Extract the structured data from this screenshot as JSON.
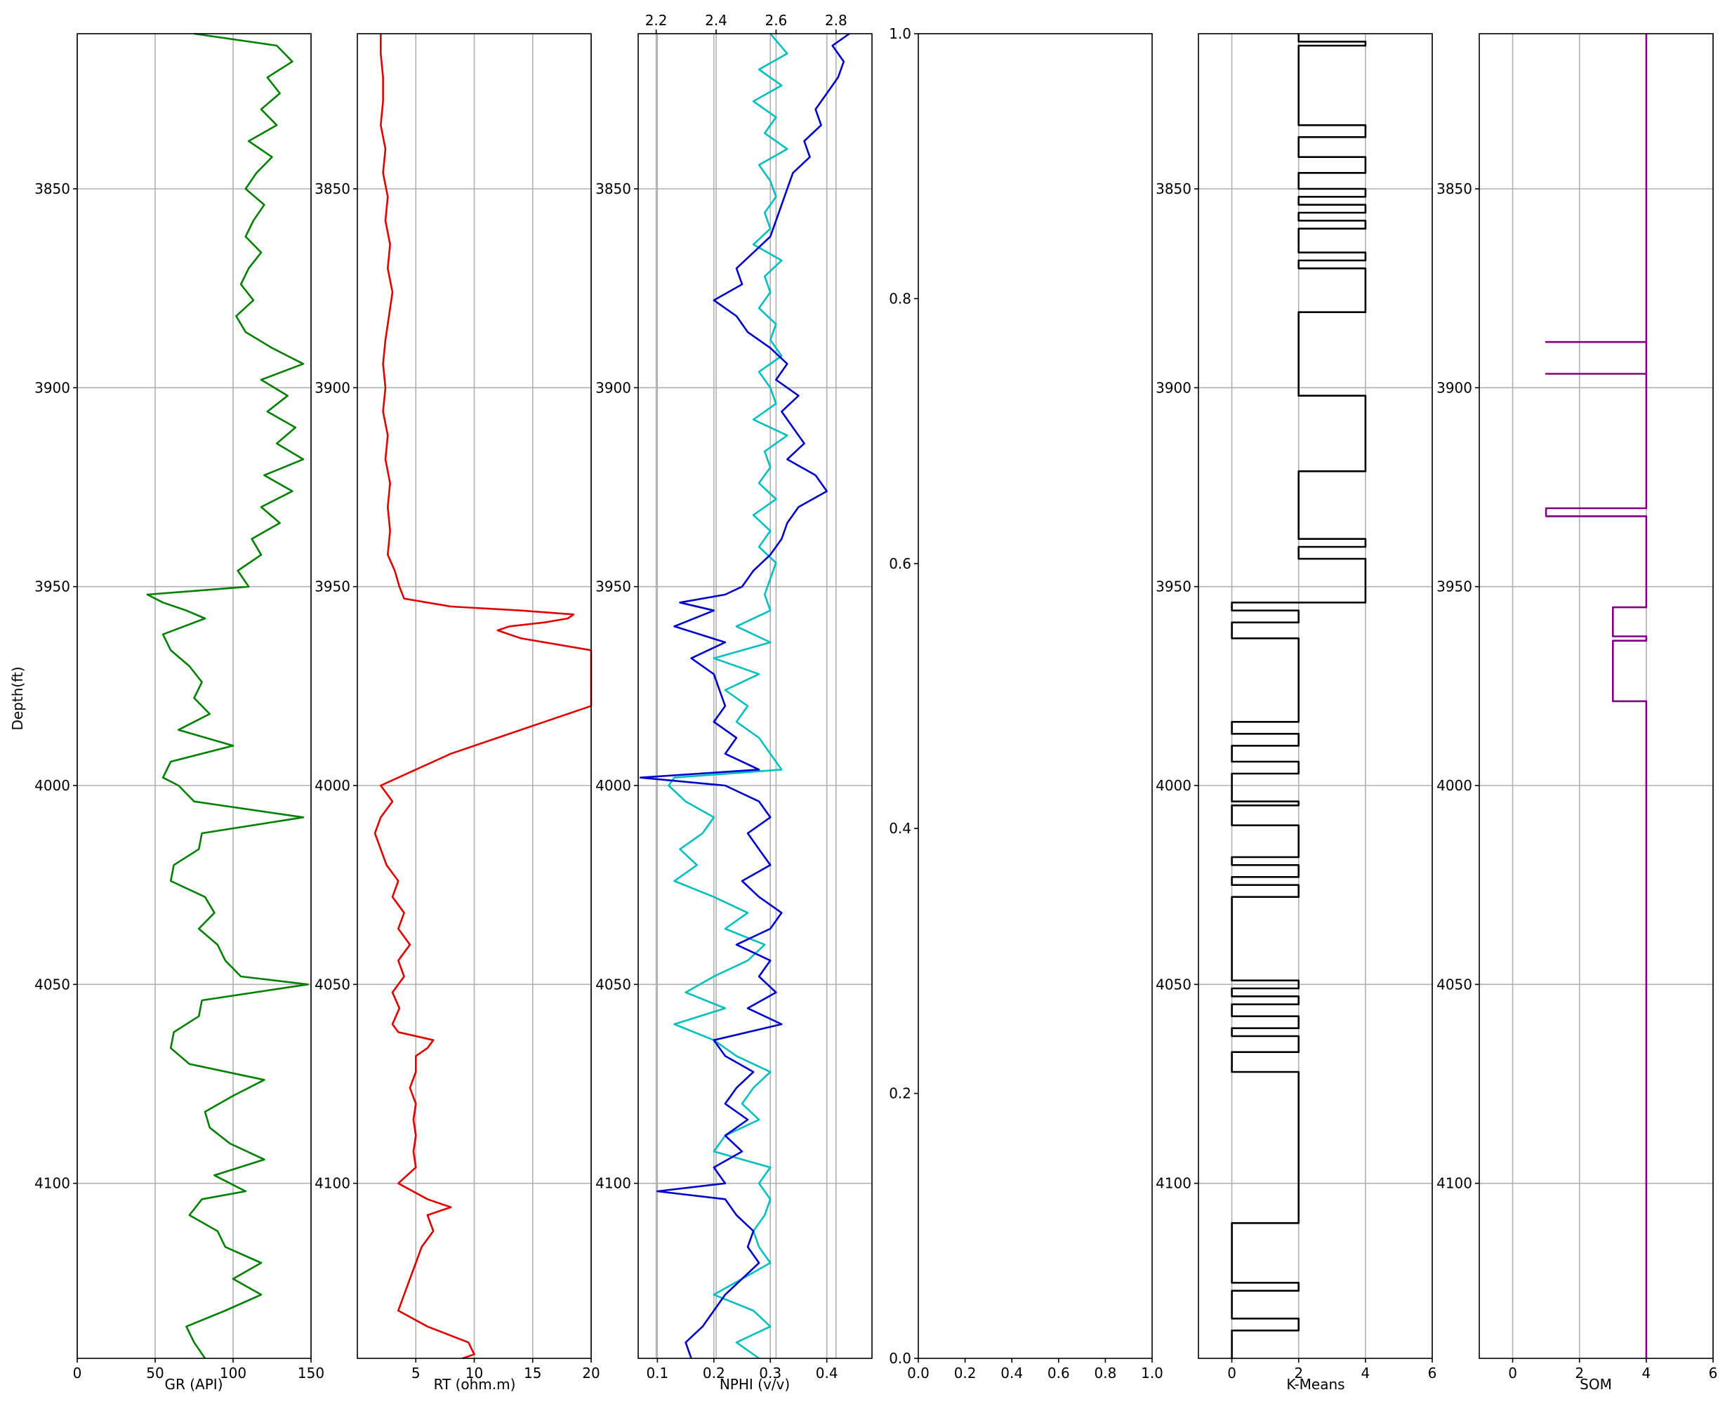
{
  "chart_data": [
    {
      "type": "line",
      "y_name": "depth",
      "ylabel": "Depth(ft)",
      "ylim": [
        3811,
        4144
      ],
      "y_ticks": [
        3850,
        3900,
        3950,
        4000,
        4050,
        4100
      ],
      "xlabel": "GR (API)",
      "xlim": [
        0,
        150
      ],
      "x_ticks": [
        0,
        50,
        100,
        150
      ],
      "grid": true,
      "color": "#008000",
      "series": [
        {
          "depth": [
            3811,
            3814,
            3818,
            3822,
            3826,
            3830,
            3834,
            3838,
            3842,
            3846,
            3850,
            3854,
            3858,
            3862,
            3866,
            3870,
            3874,
            3878,
            3882,
            3886,
            3890,
            3894,
            3898,
            3902,
            3906,
            3910,
            3914,
            3918,
            3922,
            3926,
            3930,
            3934,
            3938,
            3942,
            3946,
            3950,
            3952,
            3954,
            3956,
            3958,
            3962,
            3966,
            3970,
            3974,
            3978,
            3982,
            3986,
            3990,
            3994,
            3998,
            4000,
            4004,
            4008,
            4012,
            4016,
            4020,
            4024,
            4028,
            4032,
            4036,
            4040,
            4044,
            4048,
            4050,
            4054,
            4058,
            4062,
            4066,
            4070,
            4074,
            4078,
            4082,
            4086,
            4090,
            4094,
            4098,
            4102,
            4104,
            4108,
            4112,
            4116,
            4120,
            4124,
            4128,
            4132,
            4136,
            4140,
            4144
          ],
          "x": [
            75,
            128,
            138,
            122,
            130,
            118,
            128,
            110,
            125,
            115,
            108,
            120,
            113,
            108,
            118,
            110,
            105,
            113,
            102,
            108,
            125,
            145,
            118,
            135,
            122,
            140,
            128,
            145,
            120,
            138,
            118,
            130,
            112,
            118,
            103,
            110,
            45,
            55,
            70,
            82,
            55,
            60,
            72,
            80,
            75,
            85,
            65,
            100,
            60,
            55,
            65,
            75,
            145,
            80,
            78,
            62,
            60,
            82,
            88,
            78,
            90,
            95,
            105,
            148,
            80,
            78,
            62,
            60,
            72,
            120,
            100,
            82,
            85,
            98,
            120,
            88,
            108,
            80,
            72,
            90,
            95,
            118,
            100,
            118,
            95,
            70,
            75,
            82
          ]
        }
      ]
    },
    {
      "type": "line",
      "y_name": "depth",
      "ylim": [
        3811,
        4144
      ],
      "y_ticks": [
        3850,
        3900,
        3950,
        4000,
        4050,
        4100
      ],
      "xlabel": "RT (ohm.m)",
      "xlim": [
        0,
        20
      ],
      "x_ticks": [
        5,
        10,
        15,
        20
      ],
      "grid": true,
      "color": "#e00000",
      "series": [
        {
          "depth": [
            3811,
            3816,
            3822,
            3828,
            3834,
            3840,
            3846,
            3852,
            3858,
            3864,
            3870,
            3876,
            3882,
            3888,
            3894,
            3900,
            3906,
            3912,
            3918,
            3924,
            3930,
            3936,
            3942,
            3946,
            3950,
            3953,
            3955,
            3956,
            3957,
            3958,
            3959,
            3960,
            3961,
            3963,
            3966,
            3970,
            3974,
            3978,
            3980,
            3984,
            3988,
            3992,
            3996,
            4000,
            4004,
            4008,
            4012,
            4016,
            4020,
            4024,
            4028,
            4032,
            4036,
            4040,
            4044,
            4048,
            4052,
            4056,
            4060,
            4062,
            4064,
            4066,
            4068,
            4072,
            4076,
            4080,
            4084,
            4088,
            4092,
            4096,
            4100,
            4104,
            4106,
            4108,
            4112,
            4116,
            4120,
            4124,
            4128,
            4132,
            4136,
            4140,
            4143,
            4144
          ],
          "x": [
            2,
            2,
            2.2,
            2.2,
            2,
            2.4,
            2.2,
            2.6,
            2.4,
            2.8,
            2.6,
            3,
            2.7,
            2.4,
            2.2,
            2.4,
            2.2,
            2.6,
            2.4,
            2.8,
            2.6,
            2.8,
            2.6,
            3.2,
            3.6,
            4,
            8,
            14,
            18.5,
            18,
            16,
            13,
            12,
            14,
            20,
            20,
            20,
            20,
            20,
            16,
            12,
            8,
            5,
            2,
            3,
            2,
            1.5,
            2,
            2.5,
            3.5,
            3,
            4,
            3.5,
            4.5,
            3.5,
            4,
            3,
            3.6,
            3,
            3.5,
            6.5,
            6,
            5,
            5,
            4.5,
            5,
            4.8,
            5,
            4.8,
            5,
            3.5,
            6,
            8,
            6,
            6.5,
            5.5,
            5,
            4.5,
            4,
            3.5,
            6,
            9.5,
            10,
            9
          ]
        }
      ]
    },
    {
      "type": "line",
      "y_name": "depth",
      "ylim": [
        3811,
        4144
      ],
      "y_ticks": [
        3850,
        3900,
        3950,
        4000,
        4050,
        4100
      ],
      "xlabel": "NPHI (v/v)",
      "xlim": [
        0.066,
        0.48
      ],
      "x_ticks": [
        0.1,
        0.2,
        0.3,
        0.4
      ],
      "top_xlim": [
        2.14,
        2.92
      ],
      "top_x_ticks": [
        2.2,
        2.4,
        2.6,
        2.8
      ],
      "grid": true,
      "series": [
        {
          "color": "#00bfbf",
          "depth": [
            3811,
            3816,
            3820,
            3824,
            3828,
            3832,
            3836,
            3840,
            3844,
            3848,
            3852,
            3856,
            3860,
            3864,
            3868,
            3872,
            3876,
            3880,
            3884,
            3888,
            3892,
            3896,
            3900,
            3904,
            3908,
            3912,
            3916,
            3920,
            3924,
            3928,
            3932,
            3936,
            3940,
            3944,
            3948,
            3952,
            3956,
            3960,
            3964,
            3968,
            3972,
            3976,
            3980,
            3984,
            3988,
            3992,
            3996,
            3998,
            4000,
            4004,
            4008,
            4012,
            4016,
            4020,
            4024,
            4028,
            4032,
            4036,
            4040,
            4044,
            4048,
            4052,
            4056,
            4060,
            4064,
            4068,
            4072,
            4076,
            4080,
            4084,
            4088,
            4092,
            4096,
            4100,
            4104,
            4108,
            4112,
            4116,
            4120,
            4124,
            4128,
            4132,
            4136,
            4140,
            4144
          ],
          "x": [
            0.3,
            0.33,
            0.28,
            0.32,
            0.27,
            0.31,
            0.29,
            0.33,
            0.28,
            0.3,
            0.31,
            0.29,
            0.3,
            0.27,
            0.32,
            0.29,
            0.3,
            0.28,
            0.31,
            0.3,
            0.32,
            0.28,
            0.3,
            0.31,
            0.27,
            0.33,
            0.29,
            0.3,
            0.28,
            0.31,
            0.27,
            0.3,
            0.28,
            0.31,
            0.3,
            0.29,
            0.3,
            0.24,
            0.3,
            0.2,
            0.28,
            0.22,
            0.26,
            0.24,
            0.28,
            0.3,
            0.32,
            0.13,
            0.12,
            0.15,
            0.2,
            0.18,
            0.14,
            0.17,
            0.13,
            0.2,
            0.26,
            0.22,
            0.29,
            0.26,
            0.2,
            0.15,
            0.22,
            0.13,
            0.2,
            0.24,
            0.3,
            0.27,
            0.25,
            0.28,
            0.22,
            0.2,
            0.3,
            0.28,
            0.3,
            0.29,
            0.27,
            0.28,
            0.3,
            0.25,
            0.2,
            0.27,
            0.3,
            0.24,
            0.28
          ]
        },
        {
          "color": "#0000cc",
          "depth": [
            3811,
            3814,
            3818,
            3822,
            3826,
            3830,
            3834,
            3838,
            3842,
            3846,
            3850,
            3854,
            3858,
            3862,
            3866,
            3870,
            3874,
            3878,
            3882,
            3886,
            3890,
            3894,
            3898,
            3902,
            3906,
            3910,
            3914,
            3918,
            3922,
            3926,
            3930,
            3934,
            3938,
            3942,
            3946,
            3950,
            3952,
            3954,
            3956,
            3960,
            3964,
            3968,
            3972,
            3976,
            3980,
            3984,
            3988,
            3992,
            3996,
            3998,
            4000,
            4004,
            4008,
            4012,
            4016,
            4020,
            4024,
            4028,
            4032,
            4036,
            4040,
            4044,
            4048,
            4052,
            4056,
            4060,
            4064,
            4068,
            4072,
            4076,
            4080,
            4084,
            4088,
            4092,
            4096,
            4100,
            4102,
            4104,
            4108,
            4112,
            4116,
            4120,
            4124,
            4128,
            4132,
            4136,
            4140,
            4144
          ],
          "x": [
            0.44,
            0.41,
            0.43,
            0.42,
            0.4,
            0.38,
            0.39,
            0.36,
            0.37,
            0.34,
            0.33,
            0.32,
            0.31,
            0.3,
            0.27,
            0.24,
            0.25,
            0.2,
            0.24,
            0.26,
            0.3,
            0.33,
            0.31,
            0.35,
            0.32,
            0.34,
            0.36,
            0.33,
            0.38,
            0.4,
            0.35,
            0.33,
            0.32,
            0.3,
            0.27,
            0.25,
            0.22,
            0.14,
            0.2,
            0.13,
            0.22,
            0.16,
            0.2,
            0.21,
            0.22,
            0.2,
            0.24,
            0.22,
            0.28,
            0.07,
            0.22,
            0.28,
            0.3,
            0.26,
            0.28,
            0.3,
            0.25,
            0.28,
            0.32,
            0.3,
            0.24,
            0.3,
            0.28,
            0.31,
            0.26,
            0.32,
            0.2,
            0.22,
            0.27,
            0.24,
            0.22,
            0.26,
            0.22,
            0.25,
            0.2,
            0.22,
            0.1,
            0.22,
            0.24,
            0.27,
            0.26,
            0.28,
            0.25,
            0.22,
            0.2,
            0.18,
            0.15,
            0.16
          ]
        }
      ]
    },
    {
      "type": "line",
      "xlim": [
        0,
        1
      ],
      "ylim": [
        0,
        1
      ],
      "x_ticks": [
        0.0,
        0.2,
        0.4,
        0.6,
        0.8,
        1.0
      ],
      "y_ticks": [
        0.0,
        0.2,
        0.4,
        0.6,
        0.8,
        1.0
      ],
      "grid": false,
      "series": []
    },
    {
      "type": "line",
      "y_name": "depth",
      "ylim": [
        3811,
        4144
      ],
      "y_ticks": [
        3850,
        3900,
        3950,
        4000,
        4050,
        4100
      ],
      "xlabel": "K-Means",
      "xlim": [
        -1,
        6
      ],
      "x_ticks": [
        0,
        2,
        4,
        6
      ],
      "grid": true,
      "color": "#000000",
      "series": [
        {
          "depth": [
            3811,
            3813,
            3813,
            3814,
            3814,
            3834,
            3834,
            3837,
            3837,
            3842,
            3842,
            3846,
            3846,
            3850,
            3850,
            3852,
            3852,
            3854,
            3854,
            3856,
            3856,
            3858,
            3858,
            3860,
            3860,
            3866,
            3866,
            3868,
            3868,
            3870,
            3870,
            3881,
            3881,
            3902,
            3902,
            3921,
            3921,
            3938,
            3938,
            3940,
            3940,
            3943,
            3943,
            3954,
            3954,
            3956,
            3956,
            3959,
            3959,
            3963,
            3963,
            3984,
            3984,
            3987,
            3987,
            3990,
            3990,
            3994,
            3994,
            3997,
            3997,
            4004,
            4004,
            4005,
            4005,
            4010,
            4010,
            4018,
            4018,
            4020,
            4020,
            4023,
            4023,
            4025,
            4025,
            4028,
            4028,
            4049,
            4049,
            4051,
            4051,
            4053,
            4053,
            4055,
            4055,
            4058,
            4058,
            4061,
            4061,
            4063,
            4063,
            4067,
            4067,
            4072,
            4072,
            4110,
            4110,
            4125,
            4125,
            4127,
            4127,
            4134,
            4134,
            4137,
            4137,
            4144
          ],
          "x": [
            2,
            2,
            4,
            4,
            2,
            2,
            4,
            4,
            2,
            2,
            4,
            4,
            2,
            2,
            4,
            4,
            2,
            2,
            4,
            4,
            2,
            2,
            4,
            4,
            2,
            2,
            4,
            4,
            2,
            2,
            4,
            4,
            2,
            2,
            4,
            4,
            2,
            2,
            4,
            4,
            2,
            2,
            4,
            4,
            0,
            0,
            2,
            2,
            0,
            0,
            2,
            2,
            0,
            0,
            2,
            2,
            0,
            0,
            2,
            2,
            0,
            0,
            2,
            2,
            0,
            0,
            2,
            2,
            0,
            0,
            2,
            2,
            0,
            0,
            2,
            2,
            0,
            0,
            2,
            2,
            0,
            0,
            2,
            2,
            0,
            0,
            2,
            2,
            0,
            0,
            2,
            2,
            0,
            0,
            2,
            2,
            0,
            0,
            2,
            2,
            0,
            0,
            2,
            2,
            0,
            0
          ]
        }
      ]
    },
    {
      "type": "line",
      "y_name": "depth",
      "ylim": [
        3811,
        4144
      ],
      "y_ticks": [
        3850,
        3900,
        3950,
        4000,
        4050,
        4100
      ],
      "xlabel": "SOM",
      "xlim": [
        -1,
        6
      ],
      "x_ticks": [
        0,
        2,
        4,
        6
      ],
      "grid": true,
      "color": "#800080",
      "series": [
        {
          "depth": [
            3811,
            3888.5,
            3888.5,
            3888.5,
            3888.5,
            3896.5,
            3896.5,
            3896.5,
            3896.5,
            3930.3,
            3930.3,
            3932.3,
            3932.3,
            3932.3,
            3955.2,
            3955.2,
            3962.5,
            3962.5,
            3963.6,
            3963.6,
            3964.5,
            3964.5,
            3978.8,
            3978.8,
            4144
          ],
          "x": [
            4,
            4,
            1,
            1,
            4,
            4,
            1,
            1,
            4,
            4,
            1,
            1,
            4,
            4,
            4,
            3,
            3,
            4,
            4,
            3,
            3,
            3,
            3,
            4,
            4
          ]
        }
      ]
    }
  ]
}
